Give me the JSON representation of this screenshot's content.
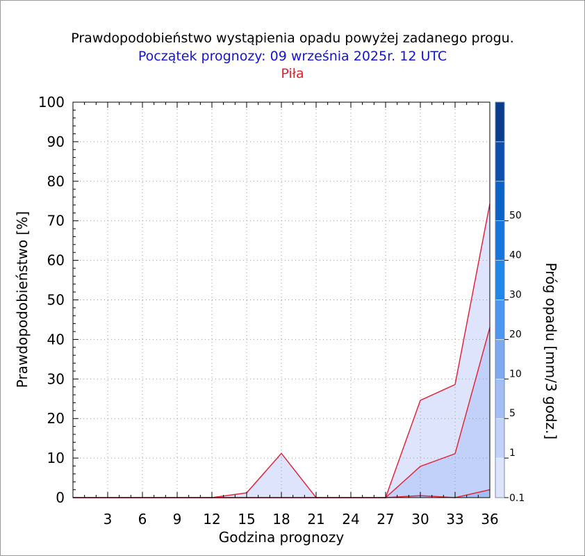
{
  "header": {
    "title": "Prawdopodobieństwo wystąpienia opadu powyżej zadanego progu.",
    "subtitle": "Początek prognozy: 09 września 2025r. 12 UTC",
    "station": "Piła"
  },
  "chart_data": {
    "type": "area",
    "xlabel": "Godzina prognozy",
    "ylabel": "Prawdopodobieństwo [%]",
    "xlim": [
      0,
      36
    ],
    "ylim": [
      0,
      100
    ],
    "x_ticks": [
      3,
      6,
      9,
      12,
      15,
      18,
      21,
      24,
      27,
      30,
      33,
      36
    ],
    "y_ticks": [
      0,
      10,
      20,
      30,
      40,
      50,
      60,
      70,
      80,
      90,
      100
    ],
    "grid": true,
    "x": [
      0,
      3,
      6,
      9,
      12,
      15,
      18,
      21,
      24,
      27,
      30,
      33,
      36
    ],
    "series": [
      {
        "name": "0.1",
        "values": [
          0,
          0,
          0,
          0,
          0,
          1.2,
          11.2,
          0,
          0,
          0,
          24.6,
          28.6,
          74.3
        ]
      },
      {
        "name": "1",
        "values": [
          0,
          0,
          0,
          0,
          0,
          0,
          0,
          0,
          0,
          0,
          7.9,
          11.1,
          43.0
        ]
      },
      {
        "name": "5",
        "values": [
          0,
          0,
          0,
          0,
          0,
          0,
          0,
          0,
          0,
          0,
          0.5,
          0,
          2.0
        ]
      }
    ],
    "colorbar": {
      "label": "Próg opadu [mm/3 godz.]",
      "labels": [
        "0.1",
        "1",
        "5",
        "10",
        "20",
        "30",
        "40",
        "50"
      ],
      "colors": [
        "#dde4fb",
        "#c1d1f9",
        "#a3bef5",
        "#7ea9f0",
        "#4d96f0",
        "#1f86ea",
        "#1575dc",
        "#0a62c6",
        "#0b4eab",
        "#0b3c8c"
      ]
    },
    "line_color": "#e0283a"
  }
}
